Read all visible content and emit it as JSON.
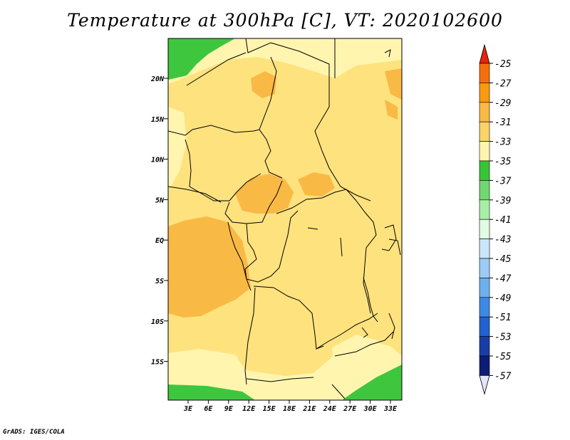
{
  "title": "Temperature at 300hPa [C], VT: 2020102600",
  "credit": "GrADS: IGES/COLA",
  "map": {
    "lat_labels": [
      "20N",
      "15N",
      "10N",
      "5N",
      "EQ",
      "5S",
      "10S",
      "15S"
    ],
    "lon_labels": [
      "3E",
      "6E",
      "9E",
      "12E",
      "15E",
      "18E",
      "21E",
      "24E",
      "27E",
      "30E",
      "33E"
    ],
    "palette": {
      "pale_yellow": "#fff5ae",
      "yellow": "#fee27e",
      "orange": "#f9b945",
      "green": "#3fc63f"
    }
  },
  "colorbar": {
    "labels": [
      "-25",
      "-27",
      "-29",
      "-31",
      "-33",
      "-35",
      "-37",
      "-39",
      "-41",
      "-43",
      "-45",
      "-47",
      "-49",
      "-51",
      "-53",
      "-55",
      "-57"
    ],
    "colors": [
      "#f24a0d",
      "#f66e0c",
      "#f99a10",
      "#f9b945",
      "#fbd468",
      "#fff5ae",
      "#35c535",
      "#6fd96f",
      "#a7eea7",
      "#e2fbe2",
      "#cbe6fb",
      "#9ccbf5",
      "#6cb0ee",
      "#3c8ae6",
      "#2261d0",
      "#173ea8",
      "#0d1c74"
    ],
    "top_arrow": "#e8230b",
    "bottom_arrow": "#e3e6fa"
  }
}
